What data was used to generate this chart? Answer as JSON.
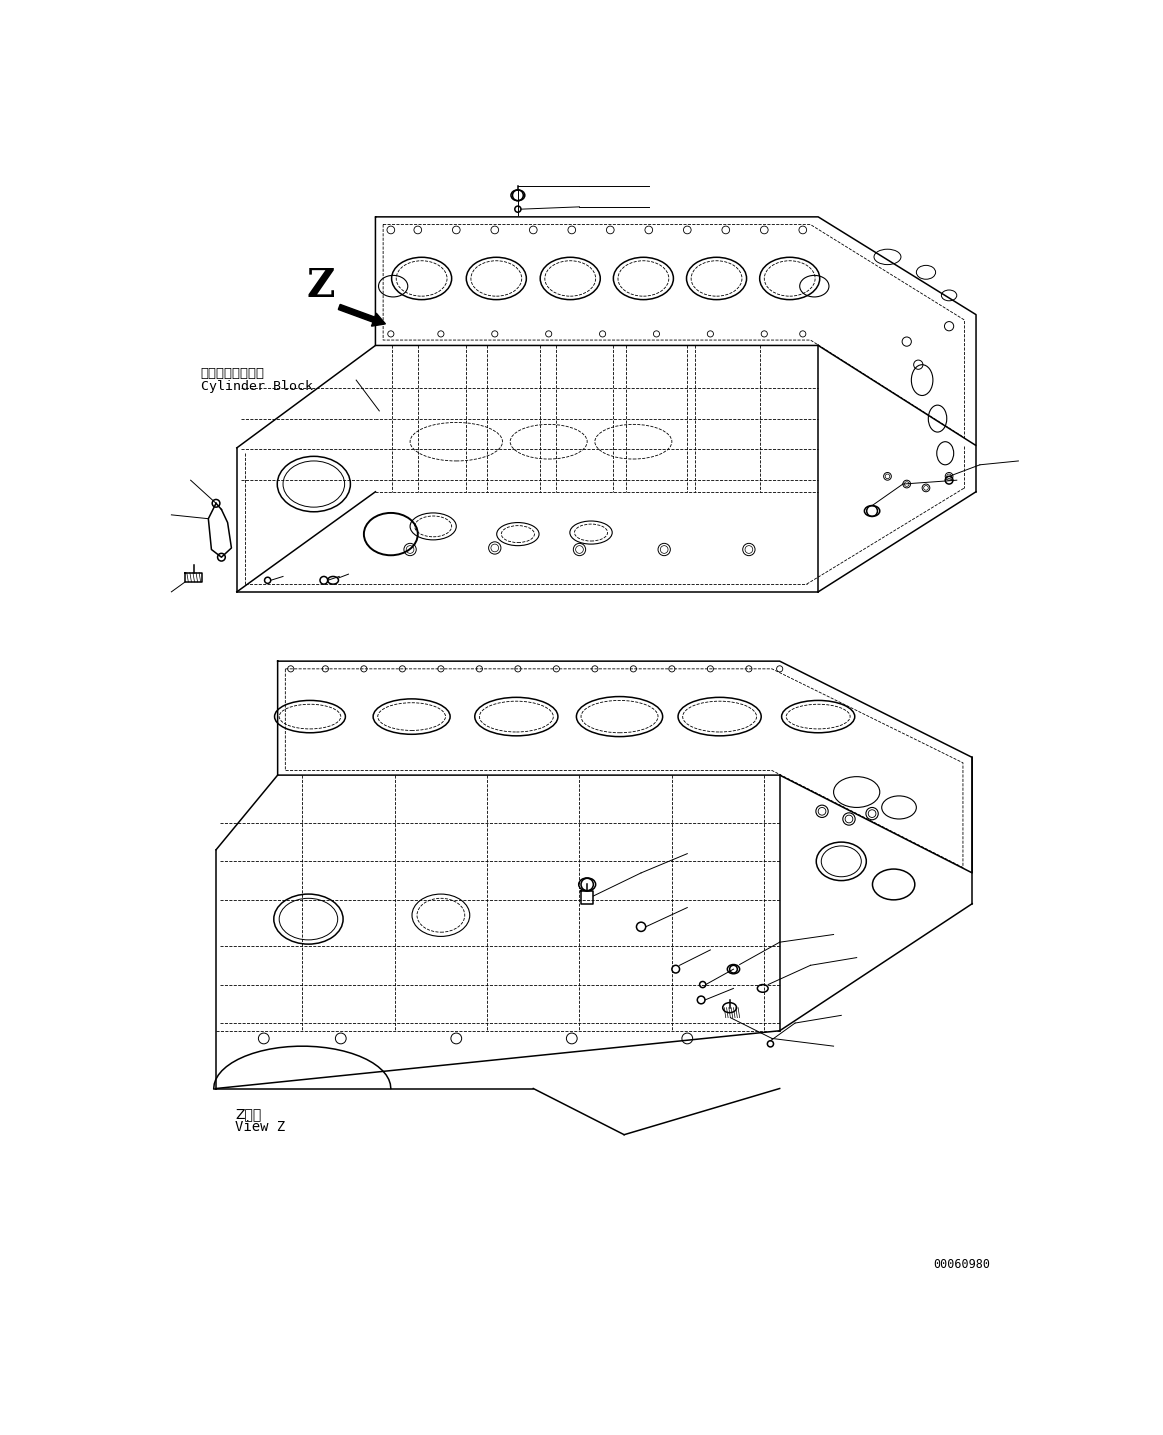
{
  "fig_width": 11.63,
  "fig_height": 14.35,
  "bg_color": "#ffffff",
  "label_z_top": "Z",
  "label_cylinder_jp": "シリンダブロック",
  "label_cylinder_en": "Cylinder Block",
  "label_view_z_jp": "Z　視",
  "label_view_z_en": "View Z",
  "label_code": "00060980",
  "lw_main": 1.1,
  "lw_dash": 0.6,
  "lw_thin": 0.5
}
